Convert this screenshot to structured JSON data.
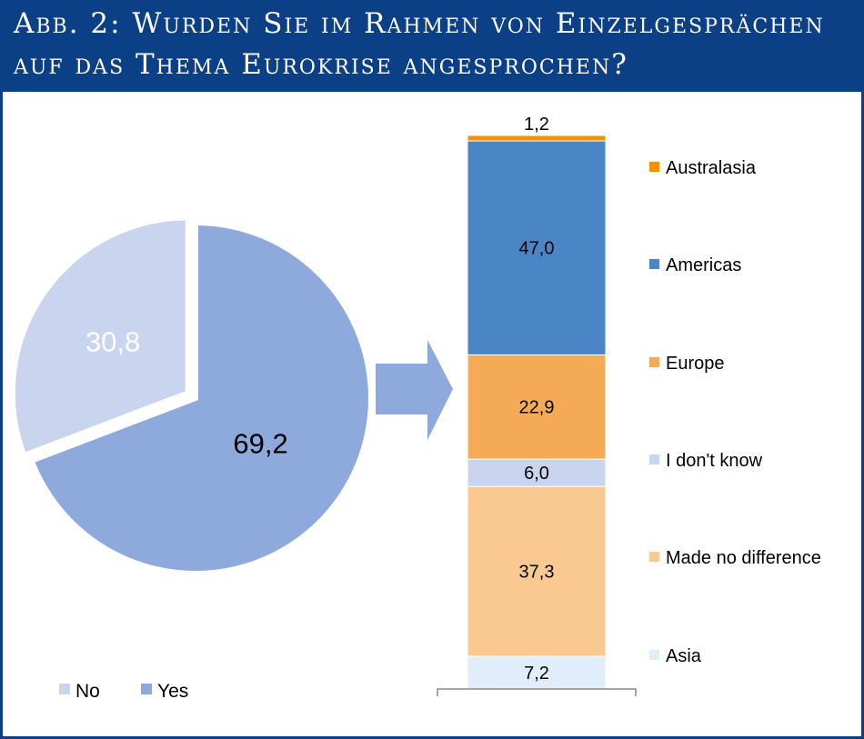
{
  "header": {
    "title_line1": "Abb. 2: Wurden Sie im Rahmen von Einzelgesprächen",
    "title_line2": "auf das Thema Eurokrise angesprochen?"
  },
  "colors": {
    "header_bg": "#0b3f86",
    "no": "#c9d5ee",
    "yes": "#8eaadc",
    "arrow": "#8eaadc",
    "australasia": "#f39200",
    "americas": "#4a86c5",
    "europe": "#f5ab55",
    "dont_know": "#c9d5ee",
    "made_no_difference": "#f9c991",
    "asia": "#dfeefa"
  },
  "chart_data": [
    {
      "type": "pie",
      "slices": [
        {
          "name": "No",
          "value": 30.8,
          "label": "30,8",
          "color": "#c9d5ee"
        },
        {
          "name": "Yes",
          "value": 69.2,
          "label": "69,2",
          "color": "#8eaadc"
        }
      ],
      "legend": {
        "placement": "bottom-left",
        "entries": [
          "No",
          "Yes"
        ]
      }
    },
    {
      "type": "bar",
      "stacked": true,
      "series": [
        {
          "name": "Asia",
          "values": [
            7.2
          ],
          "label": "7,2",
          "color": "#dfeefa"
        },
        {
          "name": "Made no difference",
          "values": [
            37.3
          ],
          "label": "37,3",
          "color": "#f9c991"
        },
        {
          "name": "I don't know",
          "values": [
            6.0
          ],
          "label": "6,0",
          "color": "#c9d5ee"
        },
        {
          "name": "Europe",
          "values": [
            22.9
          ],
          "label": "22,9",
          "color": "#f5ab55"
        },
        {
          "name": "Americas",
          "values": [
            47.0
          ],
          "label": "47,0",
          "color": "#4a86c5"
        },
        {
          "name": "Australasia",
          "values": [
            1.2
          ],
          "label": "1,2",
          "color": "#f39200"
        }
      ],
      "ylim": [
        0,
        121.6
      ],
      "legend": {
        "placement": "right"
      }
    }
  ]
}
